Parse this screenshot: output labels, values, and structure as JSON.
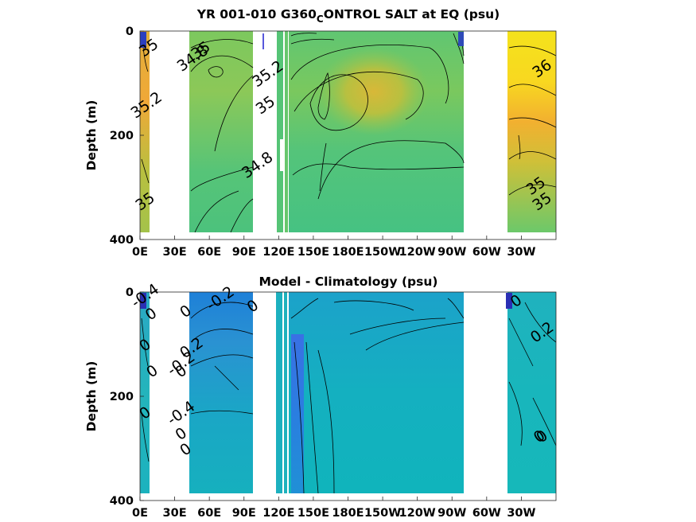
{
  "chart_data": [
    {
      "type": "heatmap",
      "title": "YR 001-010 G360",
      "title_sub": "C",
      "title_rest": "ONTROL SALT at EQ (psu)",
      "ylabel": "Depth (m)",
      "xticks": [
        "0E",
        "30E",
        "60E",
        "90E",
        "120E",
        "150E",
        "180E",
        "150W",
        "120W",
        "90W",
        "60W",
        "30W"
      ],
      "yticks": [
        0,
        200,
        400
      ],
      "ylim": [
        0,
        400
      ],
      "colormap": "parula",
      "contour_labels": [
        {
          "text": "35",
          "x": 10,
          "y": 40
        },
        {
          "text": "35.2",
          "x": 8,
          "y": 150
        },
        {
          "text": "34.8",
          "x": 48,
          "y": 60
        },
        {
          "text": "35",
          "x": 55,
          "y": 45
        },
        {
          "text": "35.2",
          "x": 113,
          "y": 90
        },
        {
          "text": "35",
          "x": 111,
          "y": 150
        },
        {
          "text": "34.8",
          "x": 104,
          "y": 265
        },
        {
          "text": "35",
          "x": 3,
          "y": 335
        },
        {
          "text": "35",
          "x": -6,
          "y": 335
        },
        {
          "text": "36",
          "x": -5,
          "y": 80
        },
        {
          "text": "35",
          "x": -15,
          "y": 305
        }
      ]
    },
    {
      "type": "heatmap",
      "title": "Model - Climatology (psu)",
      "ylabel": "Depth (m)",
      "xticks": [
        "0E",
        "30E",
        "60E",
        "90E",
        "120E",
        "150E",
        "180E",
        "150W",
        "120W",
        "90W",
        "60W",
        "30W"
      ],
      "yticks": [
        0,
        200,
        400
      ],
      "ylim": [
        0,
        400
      ],
      "colormap": "parula",
      "contour_labels": [
        {
          "text": "-0.4",
          "x": 3,
          "y": 15
        },
        {
          "text": "0",
          "x": 12,
          "y": 50
        },
        {
          "text": "0",
          "x": 3,
          "y": 110
        },
        {
          "text": "0",
          "x": 13,
          "y": 160
        },
        {
          "text": "-0.2",
          "x": 72,
          "y": 20
        },
        {
          "text": "0",
          "x": 42,
          "y": 45
        },
        {
          "text": "0.2",
          "x": 47,
          "y": 115
        },
        {
          "text": "-0.2",
          "x": 38,
          "y": 145
        },
        {
          "text": "0",
          "x": 38,
          "y": 160
        },
        {
          "text": "0",
          "x": 38,
          "y": 280
        },
        {
          "text": "-0.4",
          "x": 38,
          "y": 240
        },
        {
          "text": "0",
          "x": 42,
          "y": 310
        },
        {
          "text": "0",
          "x": 100,
          "y": 35
        },
        {
          "text": "0",
          "x": -32,
          "y": 25
        },
        {
          "text": "0.2",
          "x": -6,
          "y": 85
        },
        {
          "text": "0",
          "x": -12,
          "y": 285
        },
        {
          "text": "0",
          "x": -3,
          "y": 285
        },
        {
          "text": "0",
          "x": 2,
          "y": 240
        }
      ]
    }
  ]
}
